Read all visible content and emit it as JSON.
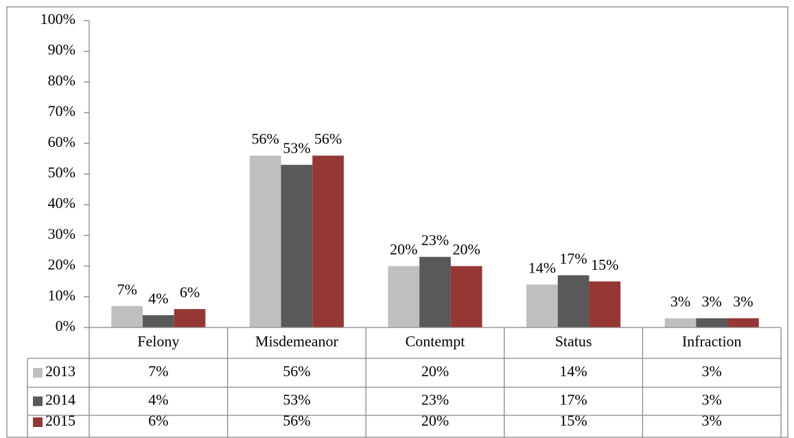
{
  "chart_data": {
    "type": "bar",
    "categories": [
      "Felony",
      "Misdemeanor",
      "Contempt",
      "Status",
      "Infraction"
    ],
    "series": [
      {
        "name": "2013",
        "color": "#bfbfbf",
        "values": [
          7,
          56,
          20,
          14,
          3
        ],
        "value_labels": [
          "7%",
          "56%",
          "20%",
          "14%",
          "3%"
        ]
      },
      {
        "name": "2014",
        "color": "#595959",
        "values": [
          4,
          53,
          23,
          17,
          3
        ],
        "value_labels": [
          "4%",
          "53%",
          "23%",
          "17%",
          "3%"
        ]
      },
      {
        "name": "2015",
        "color": "#953735",
        "values": [
          6,
          56,
          20,
          15,
          3
        ],
        "value_labels": [
          "6%",
          "56%",
          "20%",
          "15%",
          "3%"
        ]
      }
    ],
    "ylim": [
      0,
      100
    ],
    "yticks": [
      {
        "value": 0,
        "label": "0%"
      },
      {
        "value": 10,
        "label": "10%"
      },
      {
        "value": 20,
        "label": "20%"
      },
      {
        "value": 30,
        "label": "30%"
      },
      {
        "value": 40,
        "label": "40%"
      },
      {
        "value": 50,
        "label": "50%"
      },
      {
        "value": 60,
        "label": "60%"
      },
      {
        "value": 70,
        "label": "70%"
      },
      {
        "value": 80,
        "label": "80%"
      },
      {
        "value": 90,
        "label": "90%"
      },
      {
        "value": 100,
        "label": "100%"
      }
    ],
    "data_table": true
  }
}
